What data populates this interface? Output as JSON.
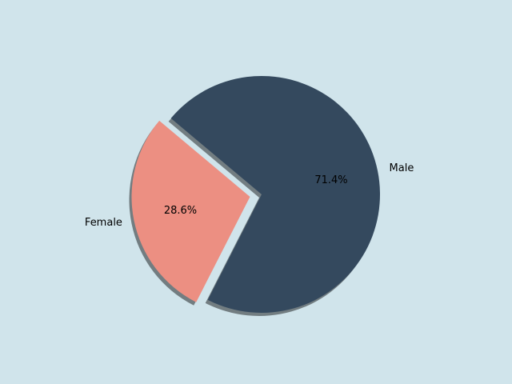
{
  "chart_data": {
    "type": "pie",
    "categories": [
      "Male",
      "Female"
    ],
    "values": [
      71.4,
      28.6
    ],
    "value_labels": [
      "71.4%",
      "28.6%"
    ],
    "colors": [
      "#34495e",
      "#ec8f82"
    ],
    "explode": [
      0,
      0.1
    ],
    "startangle": 140,
    "shadow": true
  }
}
